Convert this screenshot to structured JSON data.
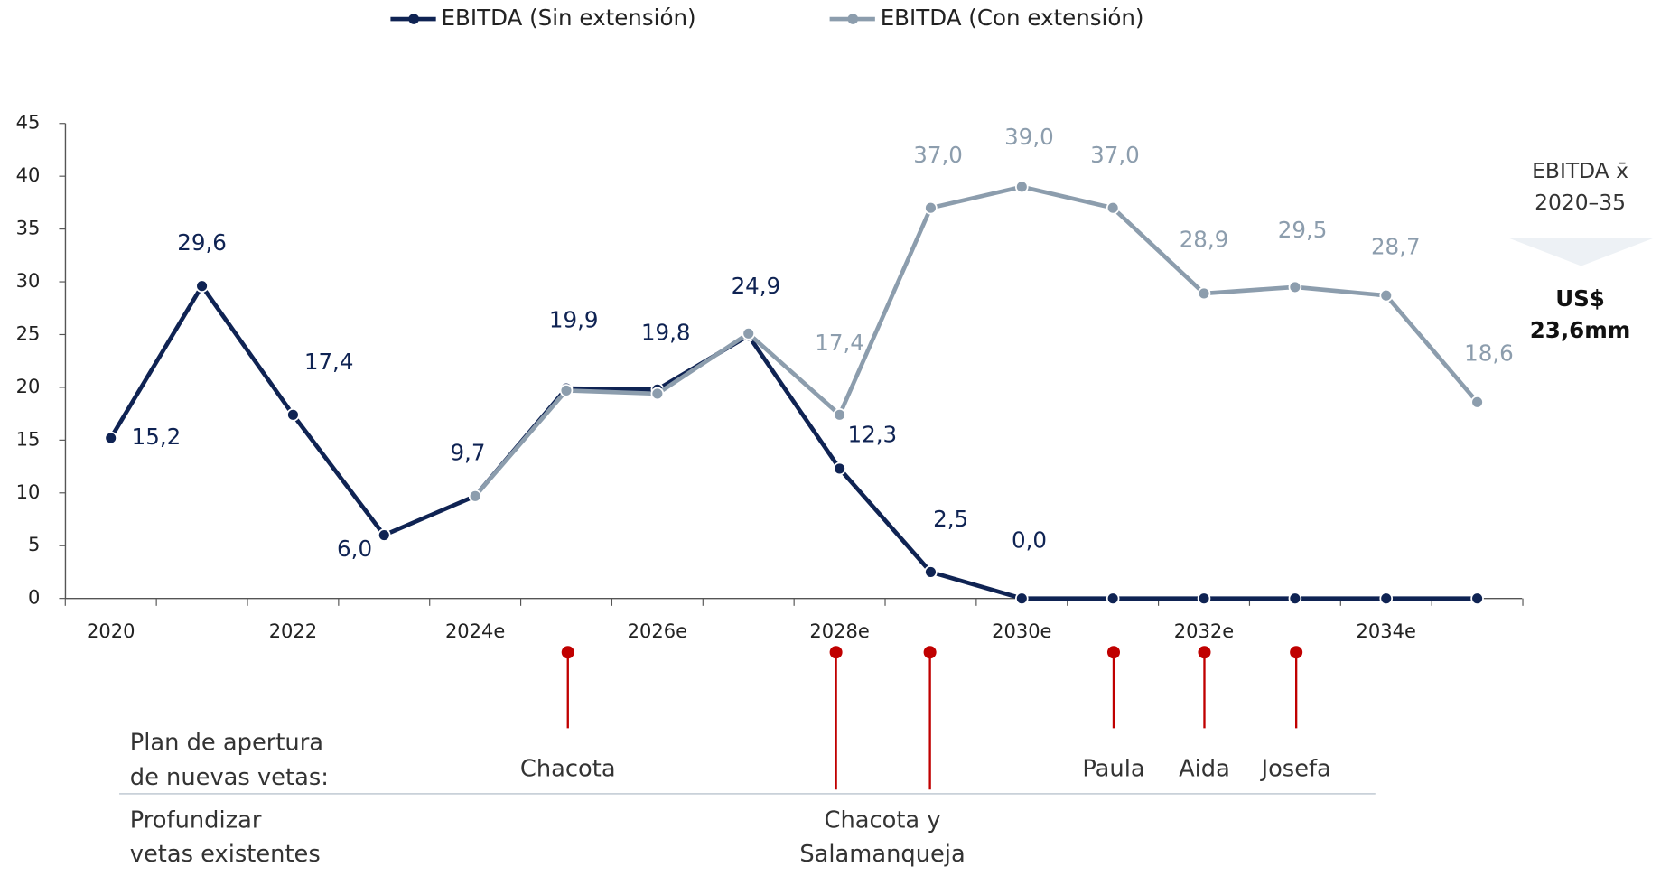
{
  "chart_data": {
    "type": "line",
    "categories": [
      "2020",
      null,
      "2022",
      null,
      "2024e",
      null,
      "2026e",
      null,
      "2028e",
      null,
      "2030e",
      null,
      "2032e",
      null,
      "2034e",
      null
    ],
    "series": [
      {
        "name": "EBITDA (Sin extensión)",
        "color": "#0f2353",
        "values": [
          15.2,
          29.6,
          17.4,
          6.0,
          9.7,
          19.9,
          19.8,
          24.9,
          12.3,
          2.5,
          0.0,
          0,
          0,
          0,
          0,
          0
        ],
        "value_labels": [
          "15,2",
          "29,6",
          "17,4",
          "6,0",
          "9,7",
          "19,9",
          "19,8",
          "24,9",
          "12,3",
          "2,5",
          "0,0",
          null,
          null,
          null,
          null,
          null
        ]
      },
      {
        "name": "EBITDA (Con extensión)",
        "color": "#8c9dad",
        "values": [
          null,
          null,
          null,
          null,
          9.7,
          19.7,
          19.4,
          25.1,
          17.4,
          37.0,
          39.0,
          37.0,
          28.9,
          29.5,
          28.7,
          18.6
        ],
        "value_labels": [
          null,
          null,
          null,
          null,
          null,
          null,
          null,
          null,
          "17,4",
          "37,0",
          "39,0",
          "37,0",
          "28,9",
          "29,5",
          "28,7",
          "18,6"
        ]
      }
    ],
    "ylim": [
      0,
      45
    ],
    "yticks": [
      0,
      5,
      10,
      15,
      20,
      25,
      30,
      35,
      40,
      45
    ],
    "legend": "top",
    "annotation": {
      "title": "EBITDA x̄",
      "period": "2020–35",
      "value": [
        "US$",
        "23,6mm"
      ]
    }
  },
  "timeline": {
    "rows": [
      [
        "Plan de apertura",
        "de nuevas vetas:"
      ],
      [
        "Profundizar",
        "vetas existentes"
      ]
    ],
    "items": [
      {
        "label": [
          "Chacota"
        ]
      },
      {
        "label": [
          "Chacota y",
          "Salamanqueja"
        ]
      },
      {
        "label": [
          "Paula"
        ]
      },
      {
        "label": [
          "Aida"
        ]
      },
      {
        "label": [
          "Josefa"
        ]
      }
    ]
  }
}
